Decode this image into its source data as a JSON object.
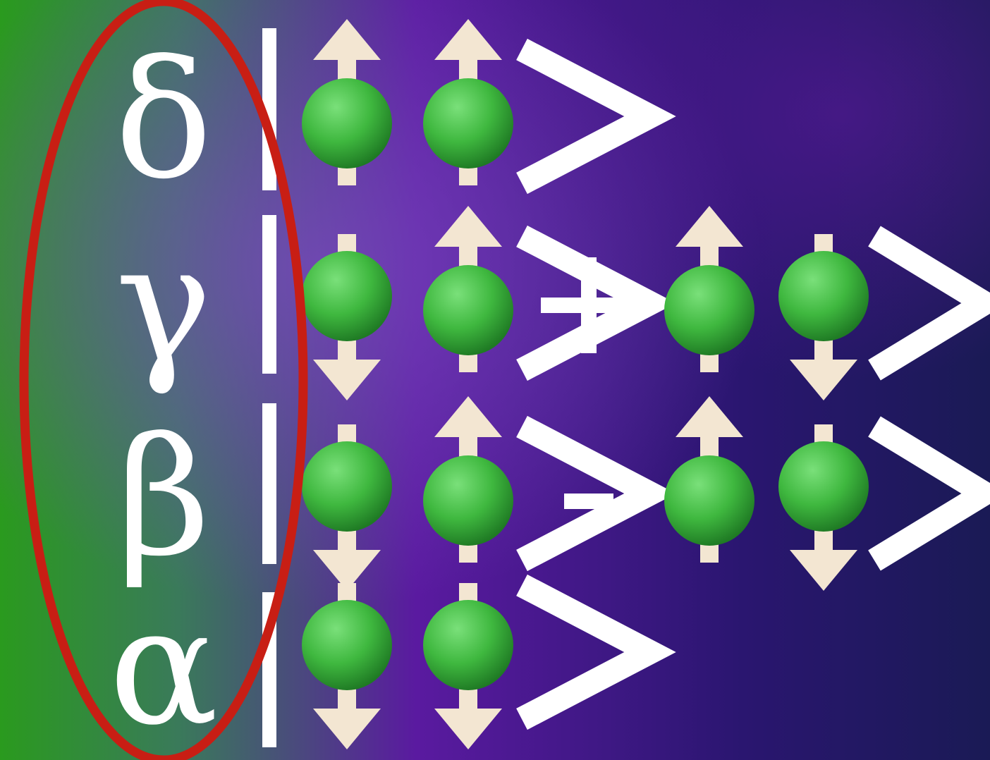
{
  "colors": {
    "background_left": "#2a9a1e",
    "background_mid": "#5a1aa0",
    "background_right": "#1a1a55",
    "ellipse": "#c81e14",
    "sphere": "#3fb83f",
    "arrow": "#f3e6d2",
    "text": "#ffffff"
  },
  "states": [
    {
      "label": "δ",
      "terms": [
        [
          "up",
          "up"
        ]
      ],
      "operators": []
    },
    {
      "label": "γ",
      "terms": [
        [
          "down",
          "up"
        ],
        [
          "up",
          "down"
        ]
      ],
      "operators": [
        "+"
      ]
    },
    {
      "label": "β",
      "terms": [
        [
          "down",
          "up"
        ],
        [
          "up",
          "down"
        ]
      ],
      "operators": [
        "-"
      ]
    },
    {
      "label": "α",
      "terms": [
        [
          "down",
          "down"
        ]
      ],
      "operators": []
    }
  ],
  "ket_close": ">"
}
